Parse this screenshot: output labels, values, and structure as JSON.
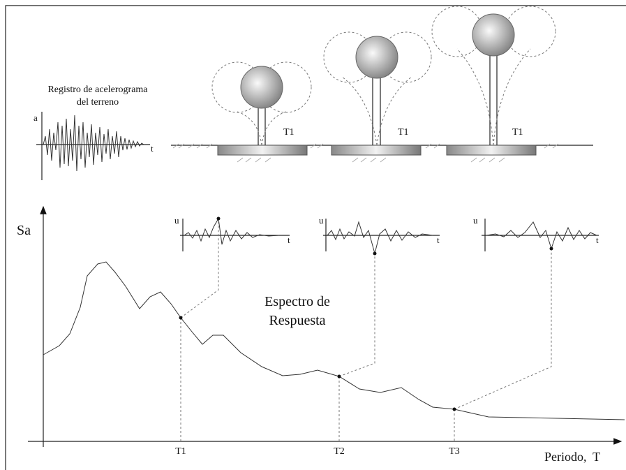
{
  "ground_record": {
    "title_lines": [
      "Registro de acelerograma",
      "del terreno"
    ],
    "y_label": "a",
    "x_label": "t"
  },
  "structures": [
    {
      "label": "T1"
    },
    {
      "label": "T1"
    },
    {
      "label": "T1"
    }
  ],
  "responses": [
    {
      "y_label": "u",
      "x_label": "t"
    },
    {
      "y_label": "u",
      "x_label": "t"
    },
    {
      "y_label": "u",
      "x_label": "t"
    }
  ],
  "spectrum": {
    "y_label": "Sa",
    "label_lines": [
      "Espectro de",
      "Respuesta"
    ],
    "x_label": "Periodo,  T",
    "periods": [
      "T1",
      "T2",
      "T3"
    ]
  }
}
